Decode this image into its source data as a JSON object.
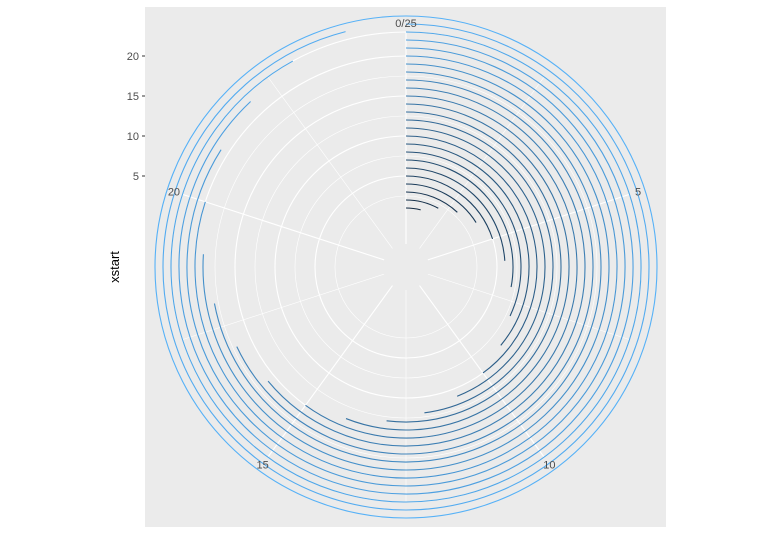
{
  "chart_data": {
    "type": "line",
    "coord": "polar",
    "ylabel": "xstart",
    "xlabel": "",
    "theta_range": [
      0,
      25
    ],
    "theta_ticks": [
      {
        "value": 0,
        "label": "0/25"
      },
      {
        "value": 5,
        "label": "5"
      },
      {
        "value": 10,
        "label": "10"
      },
      {
        "value": 15,
        "label": "15"
      },
      {
        "value": 20,
        "label": "20"
      }
    ],
    "r_range": [
      -3.5,
      23
    ],
    "r_ticks": [
      5,
      10,
      15,
      20
    ],
    "r_tick_labels": [
      "5",
      "10",
      "15",
      "20"
    ],
    "grid": true,
    "background": "#ebebeb",
    "grid_color": "#ffffff",
    "color_low": "#132b43",
    "color_high": "#56b1f7",
    "series": [
      {
        "r": 1,
        "theta_end": 1
      },
      {
        "r": 2,
        "theta_end": 2
      },
      {
        "r": 3,
        "theta_end": 3
      },
      {
        "r": 4,
        "theta_end": 4
      },
      {
        "r": 5,
        "theta_end": 5
      },
      {
        "r": 6,
        "theta_end": 6
      },
      {
        "r": 7,
        "theta_end": 7
      },
      {
        "r": 8,
        "theta_end": 8
      },
      {
        "r": 9,
        "theta_end": 9
      },
      {
        "r": 10,
        "theta_end": 10
      },
      {
        "r": 11,
        "theta_end": 11
      },
      {
        "r": 12,
        "theta_end": 12
      },
      {
        "r": 13,
        "theta_end": 13
      },
      {
        "r": 14,
        "theta_end": 14
      },
      {
        "r": 15,
        "theta_end": 15
      },
      {
        "r": 16,
        "theta_end": 16
      },
      {
        "r": 17,
        "theta_end": 17
      },
      {
        "r": 18,
        "theta_end": 18
      },
      {
        "r": 19,
        "theta_end": 19
      },
      {
        "r": 20,
        "theta_end": 20
      },
      {
        "r": 21,
        "theta_end": 21
      },
      {
        "r": 22,
        "theta_end": 22
      },
      {
        "r": 23,
        "theta_end": 23
      },
      {
        "r": 24,
        "theta_end": 24
      },
      {
        "r": 25,
        "theta_end": 25
      }
    ]
  }
}
